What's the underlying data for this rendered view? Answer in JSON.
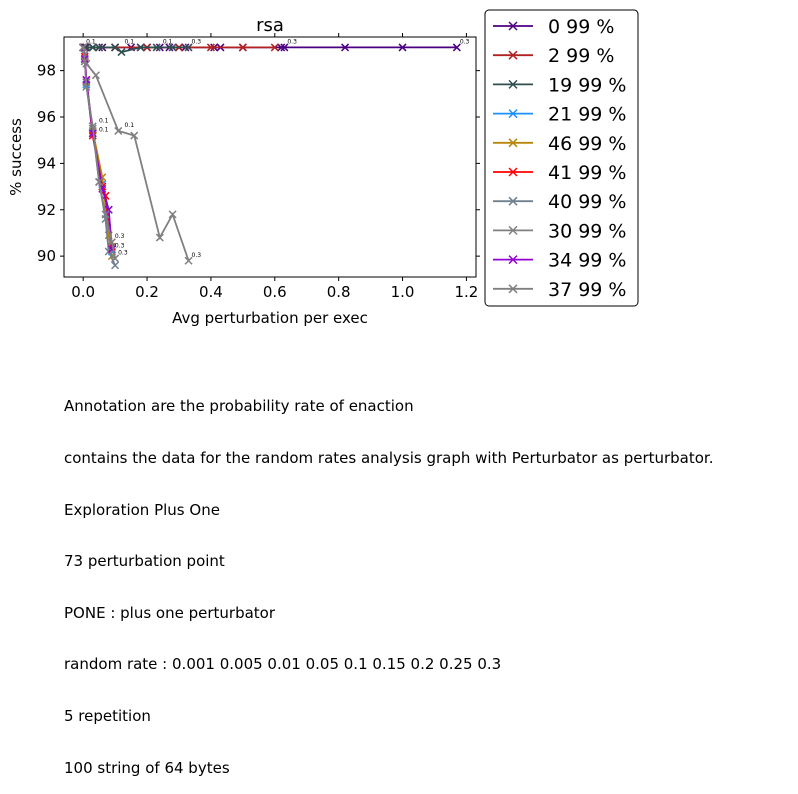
{
  "chart_data": {
    "type": "line",
    "title": "rsa",
    "xlabel": "Avg perturbation per exec",
    "ylabel": "% success",
    "xlim": [
      -0.06,
      1.23
    ],
    "ylim": [
      89.1,
      99.45
    ],
    "xticks": [
      "0.0",
      "0.2",
      "0.4",
      "0.6",
      "0.8",
      "1.0",
      "1.2"
    ],
    "xtick_values": [
      0.0,
      0.2,
      0.4,
      0.6,
      0.8,
      1.0,
      1.2
    ],
    "yticks": [
      "90",
      "92",
      "94",
      "96",
      "98"
    ],
    "ytick_values": [
      90,
      92,
      94,
      96,
      98
    ],
    "legend_position": "outside-right",
    "series": [
      {
        "name": "0 99 %",
        "color": "#4b0082",
        "x": [
          0.0,
          0.003,
          0.006,
          0.03,
          0.06,
          0.1,
          0.15,
          0.18,
          0.2,
          0.24,
          0.27,
          0.3,
          0.32,
          0.41,
          0.43,
          0.5,
          0.62,
          0.63,
          0.82,
          1.0,
          1.17
        ],
        "y": [
          99,
          99,
          99,
          99,
          99,
          99,
          99,
          99,
          99,
          99,
          99,
          99,
          99,
          99,
          99,
          99,
          99,
          99,
          99,
          99,
          99
        ]
      },
      {
        "name": "2 99 %",
        "color": "#b22222",
        "x": [
          0.0,
          0.01,
          0.05,
          0.1,
          0.2,
          0.3,
          0.4,
          0.5,
          0.6
        ],
        "y": [
          99,
          99,
          99,
          99,
          99,
          99,
          99,
          99,
          99
        ]
      },
      {
        "name": "19 99 %",
        "color": "#2f4f4f",
        "x": [
          0.0,
          0.01,
          0.03,
          0.05,
          0.1,
          0.12,
          0.18,
          0.23,
          0.28,
          0.33
        ],
        "y": [
          99,
          99,
          99,
          99,
          99,
          98.8,
          99,
          99,
          99,
          99
        ]
      },
      {
        "name": "21 99 %",
        "color": "#1e90ff",
        "x": [
          0.0,
          0.005,
          0.01,
          0.03,
          0.06,
          0.08,
          0.09
        ],
        "y": [
          99,
          98.5,
          97.4,
          95.3,
          93.1,
          92.0,
          90.2
        ]
      },
      {
        "name": "46 99 %",
        "color": "#b8860b",
        "x": [
          0.0,
          0.005,
          0.01,
          0.03,
          0.06,
          0.08,
          0.09
        ],
        "y": [
          99,
          98.4,
          97.5,
          95.4,
          93.4,
          90.9,
          90.0
        ]
      },
      {
        "name": "41 99 %",
        "color": "#ff0000",
        "x": [
          0.0,
          0.005,
          0.01,
          0.03,
          0.06,
          0.07,
          0.09
        ],
        "y": [
          99,
          98.6,
          97.6,
          95.2,
          93.0,
          92.6,
          90.4
        ]
      },
      {
        "name": "40 99 %",
        "color": "#708090",
        "x": [
          0.0,
          0.005,
          0.01,
          0.03,
          0.05,
          0.07,
          0.08,
          0.1
        ],
        "y": [
          99,
          98.7,
          97.5,
          95.5,
          93.2,
          91.6,
          90.2,
          89.6
        ]
      },
      {
        "name": "30 99 %",
        "color": "#808080",
        "x": [
          0.0,
          0.01,
          0.04,
          0.11,
          0.16,
          0.24,
          0.28,
          0.33
        ],
        "y": [
          99,
          98.3,
          97.8,
          95.4,
          95.2,
          90.8,
          91.8,
          89.8
        ]
      },
      {
        "name": "34 99 %",
        "color": "#9400d3",
        "x": [
          0.0,
          0.005,
          0.01,
          0.03,
          0.06,
          0.08,
          0.09
        ],
        "y": [
          99,
          98.5,
          97.6,
          95.3,
          92.9,
          92.0,
          90.3
        ]
      },
      {
        "name": "37 99 %",
        "color": "#808080",
        "x": [
          0.0,
          0.005,
          0.01,
          0.03,
          0.05,
          0.07,
          0.09,
          0.1
        ],
        "y": [
          99,
          98.4,
          97.3,
          95.6,
          93.2,
          91.8,
          90.6,
          89.9
        ]
      }
    ],
    "annotations": [
      {
        "text": "0.1",
        "x": 0.0,
        "y": 99
      },
      {
        "text": "0.1",
        "x": 0.12,
        "y": 99
      },
      {
        "text": "0.1",
        "x": 0.24,
        "y": 99
      },
      {
        "text": "0.3",
        "x": 0.33,
        "y": 99
      },
      {
        "text": "0.3",
        "x": 0.63,
        "y": 99
      },
      {
        "text": "0.3",
        "x": 1.17,
        "y": 99
      },
      {
        "text": "0.1",
        "x": 0.04,
        "y": 95.6
      },
      {
        "text": "0.1",
        "x": 0.04,
        "y": 95.2
      },
      {
        "text": "0.1",
        "x": 0.12,
        "y": 95.4
      },
      {
        "text": "0.3",
        "x": 0.33,
        "y": 89.8
      },
      {
        "text": "0.3",
        "x": 0.09,
        "y": 90.6
      },
      {
        "text": "0.3",
        "x": 0.09,
        "y": 90.2
      },
      {
        "text": "0.3",
        "x": 0.1,
        "y": 89.9
      }
    ]
  },
  "caption": [
    "Annotation are the probability rate of enaction",
    "contains the data for the random rates analysis graph with Perturbator as perturbator.",
    "Exploration Plus One",
    "73 perturbation point",
    "PONE : plus one perturbator",
    "random rate : 0.001 0.005 0.01 0.05 0.1 0.15 0.2 0.25 0.3",
    "5 repetition",
    "100 string of 64 bytes"
  ]
}
